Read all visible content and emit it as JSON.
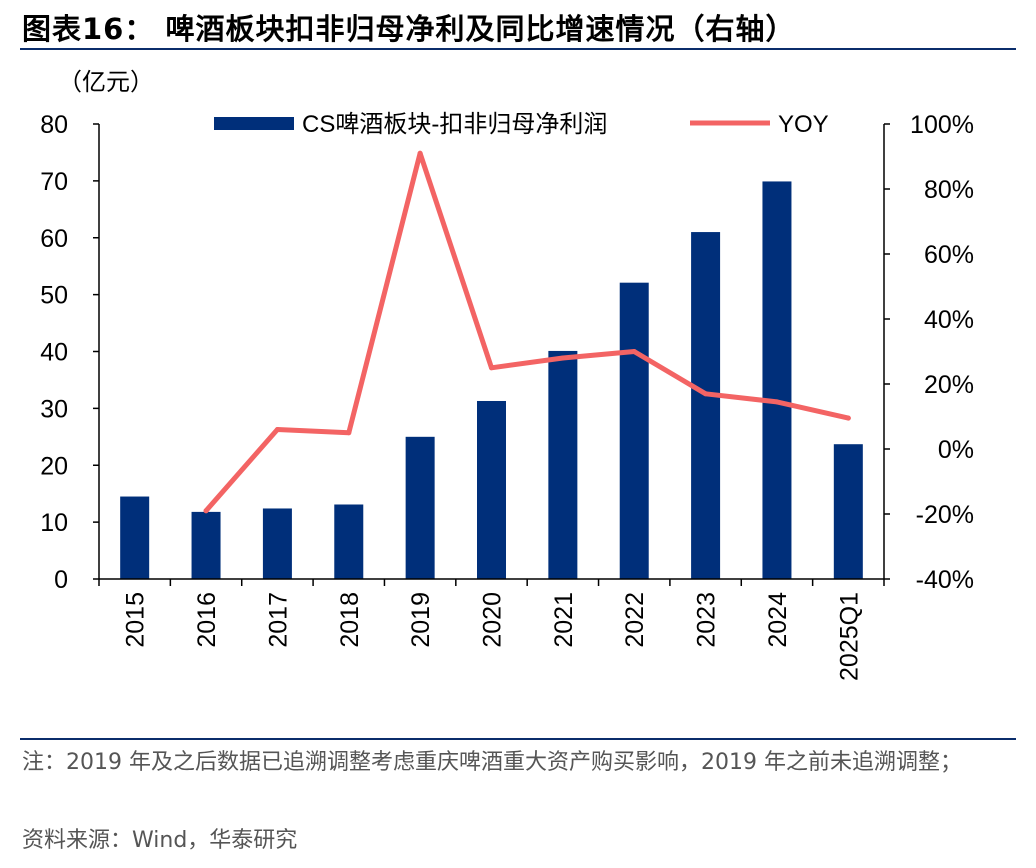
{
  "header": {
    "title": "图表16： 啤酒板块扣非归母净利及同比增速情况（右轴）"
  },
  "chart_data": {
    "type": "bar",
    "unit_label": "（亿元）",
    "categories": [
      "2015",
      "2016",
      "2017",
      "2018",
      "2019",
      "2020",
      "2021",
      "2022",
      "2023",
      "2024",
      "2025Q1"
    ],
    "series": [
      {
        "name": "CS啤酒板块-扣非归母净利润",
        "type": "bar",
        "axis": "left",
        "color": "#002f7a",
        "values": [
          14.5,
          11.8,
          12.4,
          13.1,
          25.0,
          31.3,
          40.1,
          52.1,
          61.0,
          69.9,
          23.7
        ]
      },
      {
        "name": "YOY",
        "type": "line",
        "axis": "right",
        "color": "#f36464",
        "values": [
          null,
          -19,
          6,
          5,
          91,
          25,
          28,
          30,
          17,
          14.5,
          9.5
        ]
      }
    ],
    "left_axis": {
      "min": 0,
      "max": 80,
      "ticks": [
        "0",
        "10",
        "20",
        "30",
        "40",
        "50",
        "60",
        "70",
        "80"
      ]
    },
    "right_axis": {
      "min": -40,
      "max": 100,
      "ticks": [
        "-40%",
        "-20%",
        "0%",
        "20%",
        "40%",
        "60%",
        "80%",
        "100%"
      ]
    },
    "grid": false,
    "legend": "top"
  },
  "footer": {
    "note": "注：2019 年及之后数据已追溯调整考虑重庆啤酒重大资产购买影响，2019 年之前未追溯调整；",
    "source": "资料来源：Wind，华泰研究"
  }
}
